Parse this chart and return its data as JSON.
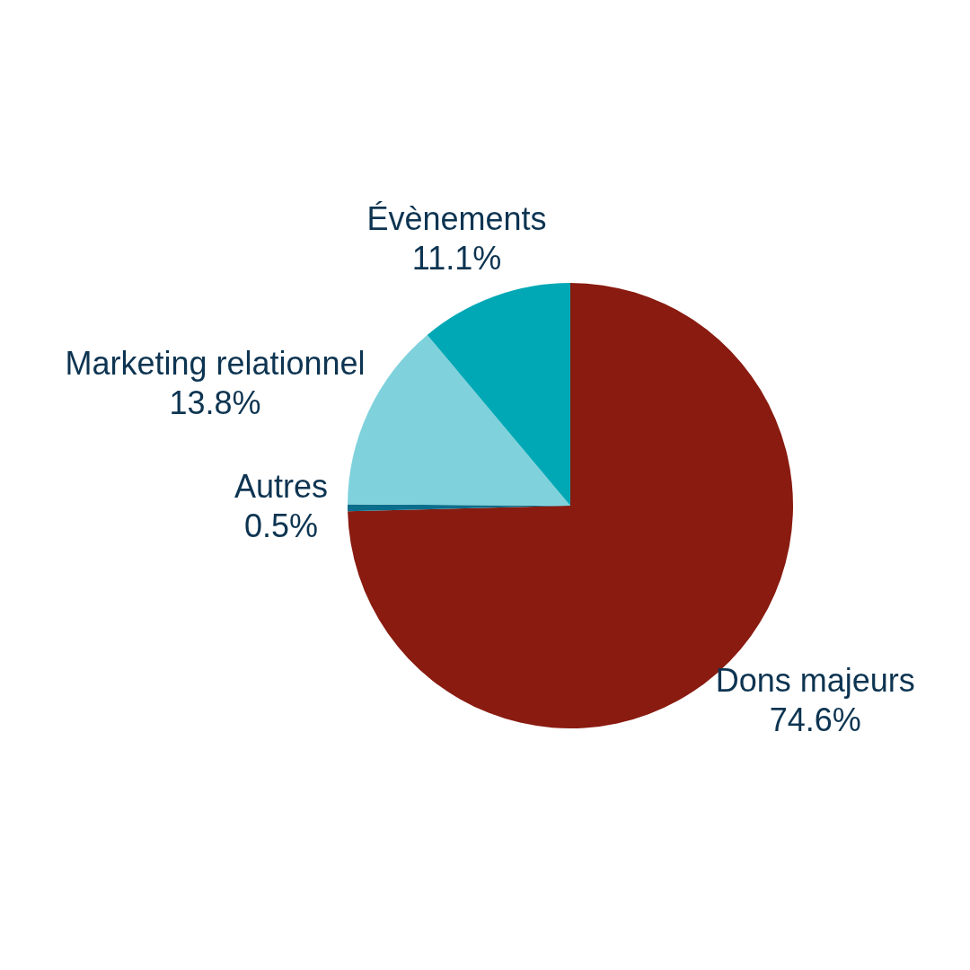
{
  "chart_data": {
    "type": "pie",
    "categories": [
      "Dons majeurs",
      "Autres",
      "Marketing relationnel",
      "Évènements"
    ],
    "values": [
      74.6,
      0.5,
      13.8,
      11.1
    ],
    "colors": [
      "#891b10",
      "#0b6e8c",
      "#7fd2dc",
      "#00a8b5"
    ],
    "value_labels": [
      "74.6%",
      "0.5%",
      "13.8%",
      "11.1%"
    ]
  }
}
